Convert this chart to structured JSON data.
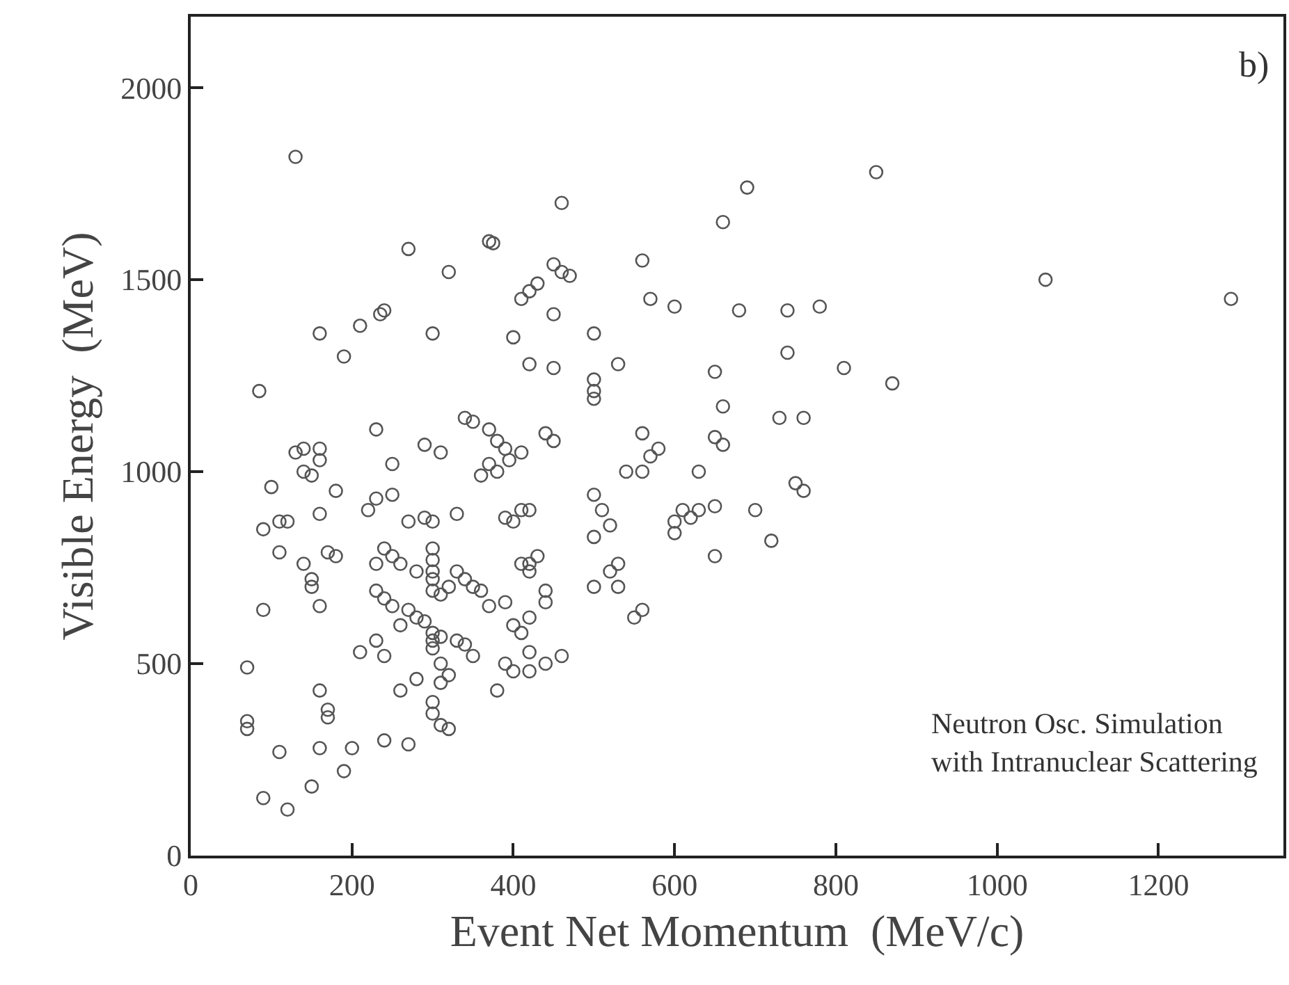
{
  "chart_data": {
    "type": "scatter",
    "xlabel": "Event Net Momentum  (MeV/c)",
    "ylabel": "Visible Energy  (MeV)",
    "annotations": [
      "b)",
      "Neutron Osc. Simulation\nwith Intranuclear Scattering"
    ],
    "xlim": [
      0,
      1355
    ],
    "ylim": [
      0,
      2185
    ],
    "xticks": [
      0,
      200,
      400,
      600,
      800,
      1000,
      1200
    ],
    "yticks": [
      0,
      500,
      1000,
      1500,
      2000
    ],
    "grid": false,
    "marker": "circle",
    "series": [
      {
        "color": "#555555",
        "x": [
          130,
          850,
          690,
          460,
          660,
          370,
          375,
          270,
          560,
          450,
          460,
          320,
          470,
          1060,
          430,
          420,
          410,
          570,
          1290,
          600,
          780,
          740,
          680,
          240,
          235,
          450,
          160,
          210,
          300,
          400,
          500,
          740,
          190,
          420,
          530,
          450,
          650,
          810,
          870,
          500,
          500,
          500,
          85,
          660,
          730,
          760,
          340,
          350,
          370,
          440,
          450,
          560,
          230,
          380,
          390,
          410,
          395,
          290,
          310,
          130,
          140,
          160,
          160,
          140,
          150,
          250,
          650,
          660,
          580,
          570,
          560,
          540,
          630,
          370,
          380,
          360,
          180,
          100,
          750,
          760,
          90,
          110,
          120,
          230,
          250,
          220,
          160,
          270,
          290,
          330,
          300,
          390,
          410,
          420,
          400,
          500,
          510,
          520,
          500,
          610,
          630,
          620,
          650,
          700,
          600,
          600,
          720,
          530,
          650,
          170,
          180,
          140,
          150,
          150,
          160,
          90,
          110,
          240,
          250,
          260,
          280,
          300,
          300,
          300,
          330,
          340,
          350,
          320,
          360,
          370,
          390,
          420,
          430,
          410,
          420,
          440,
          440,
          420,
          400,
          410,
          300,
          300,
          310,
          230,
          230,
          240,
          250,
          270,
          280,
          260,
          230,
          210,
          240,
          290,
          300,
          310,
          330,
          340,
          350,
          300,
          300,
          310,
          320,
          280,
          310,
          260,
          390,
          400,
          420,
          440,
          460,
          380,
          420,
          500,
          530,
          520,
          550,
          560,
          70,
          70,
          70,
          160,
          170,
          170,
          160,
          110,
          150,
          90,
          120,
          190,
          200,
          240,
          270,
          300,
          300,
          310,
          320
        ],
        "values": [
          1820,
          1780,
          1740,
          1700,
          1650,
          1600,
          1595,
          1580,
          1550,
          1540,
          1520,
          1520,
          1510,
          1500,
          1490,
          1470,
          1450,
          1450,
          1450,
          1430,
          1430,
          1420,
          1420,
          1420,
          1410,
          1410,
          1360,
          1380,
          1360,
          1350,
          1360,
          1310,
          1300,
          1280,
          1280,
          1270,
          1260,
          1270,
          1230,
          1240,
          1210,
          1190,
          1210,
          1170,
          1140,
          1140,
          1140,
          1130,
          1110,
          1100,
          1080,
          1100,
          1110,
          1080,
          1060,
          1050,
          1030,
          1070,
          1050,
          1050,
          1060,
          1060,
          1030,
          1000,
          990,
          1020,
          1090,
          1070,
          1060,
          1040,
          1000,
          1000,
          1000,
          1020,
          1000,
          990,
          950,
          960,
          970,
          950,
          850,
          870,
          870,
          930,
          940,
          900,
          890,
          870,
          880,
          890,
          870,
          880,
          900,
          900,
          870,
          940,
          900,
          860,
          830,
          900,
          900,
          880,
          910,
          900,
          870,
          840,
          820,
          760,
          780,
          790,
          780,
          760,
          720,
          700,
          650,
          640,
          790,
          800,
          780,
          760,
          740,
          800,
          770,
          740,
          740,
          720,
          700,
          700,
          690,
          650,
          660,
          760,
          780,
          760,
          740,
          690,
          660,
          620,
          600,
          580,
          720,
          690,
          680,
          760,
          690,
          670,
          650,
          640,
          620,
          600,
          560,
          530,
          520,
          610,
          580,
          570,
          560,
          550,
          520,
          560,
          540,
          500,
          470,
          460,
          450,
          430,
          500,
          480,
          480,
          500,
          520,
          430,
          530,
          700,
          700,
          740,
          620,
          640,
          490,
          350,
          330,
          430,
          380,
          360,
          280,
          270,
          180,
          150,
          120,
          220,
          280,
          300,
          290,
          400,
          370,
          340,
          330
        ]
      }
    ]
  }
}
